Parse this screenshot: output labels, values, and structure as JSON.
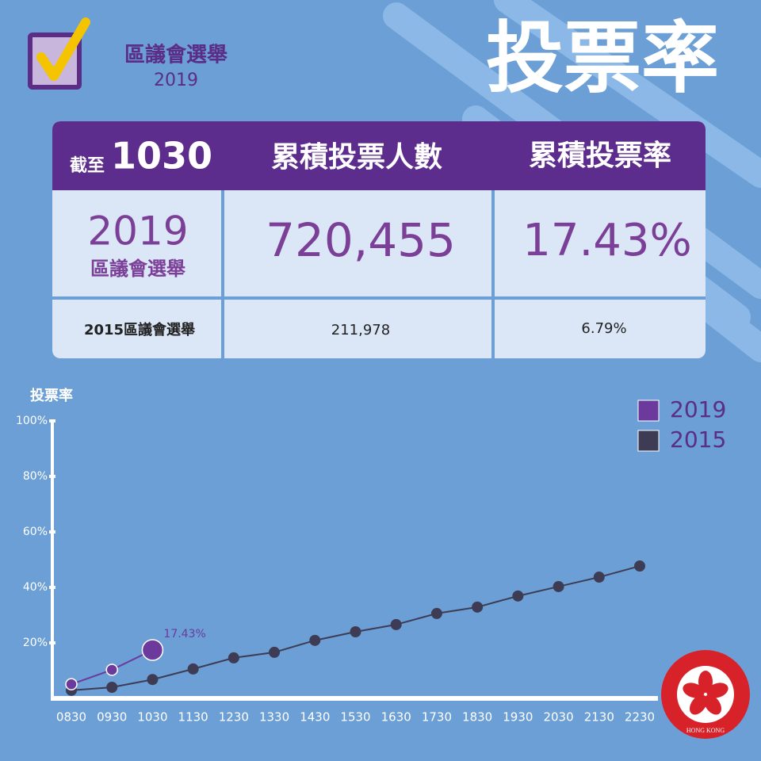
{
  "header": {
    "title": "區議會選舉",
    "year": "2019",
    "headline": "投票率"
  },
  "table": {
    "header": [
      "截至",
      "1030",
      "累積投票人數",
      "累積投票率"
    ],
    "rows": [
      {
        "year": "2019",
        "label": "區議會選舉",
        "votes": "720,455",
        "rate": "17.43%"
      },
      {
        "label": "2015區議會選舉",
        "votes": "211,978",
        "rate": "6.79%"
      }
    ]
  },
  "chart_data": {
    "type": "line",
    "y_label": "投票率",
    "categories": [
      "0830",
      "0930",
      "1030",
      "1130",
      "1230",
      "1330",
      "1430",
      "1530",
      "1630",
      "1730",
      "1830",
      "1930",
      "2030",
      "2130",
      "2230"
    ],
    "series": [
      {
        "name": "2019",
        "color": "#6b3a9c",
        "values": [
          5.1,
          10.3,
          17.43,
          null,
          null,
          null,
          null,
          null,
          null,
          null,
          null,
          null,
          null,
          null,
          null
        ],
        "value_labels": [
          null,
          null,
          "17.43%",
          null,
          null,
          null,
          null,
          null,
          null,
          null,
          null,
          null,
          null,
          null,
          null
        ]
      },
      {
        "name": "2015",
        "color": "#3d3c54",
        "values": [
          2.9,
          4.0,
          6.79,
          10.6,
          14.6,
          16.6,
          20.9,
          24.0,
          26.6,
          30.6,
          32.9,
          36.9,
          40.3,
          43.7,
          47.7
        ]
      }
    ],
    "ylim": [
      0,
      100
    ],
    "yticks": [
      {
        "value": 20,
        "label": "20%"
      },
      {
        "value": 40,
        "label": "40%"
      },
      {
        "value": 60,
        "label": "60%"
      },
      {
        "value": 80,
        "label": "80%"
      },
      {
        "value": 100,
        "label": "100%"
      }
    ],
    "legend": "top-right"
  },
  "emblem": {
    "text": "HONG KONG"
  }
}
